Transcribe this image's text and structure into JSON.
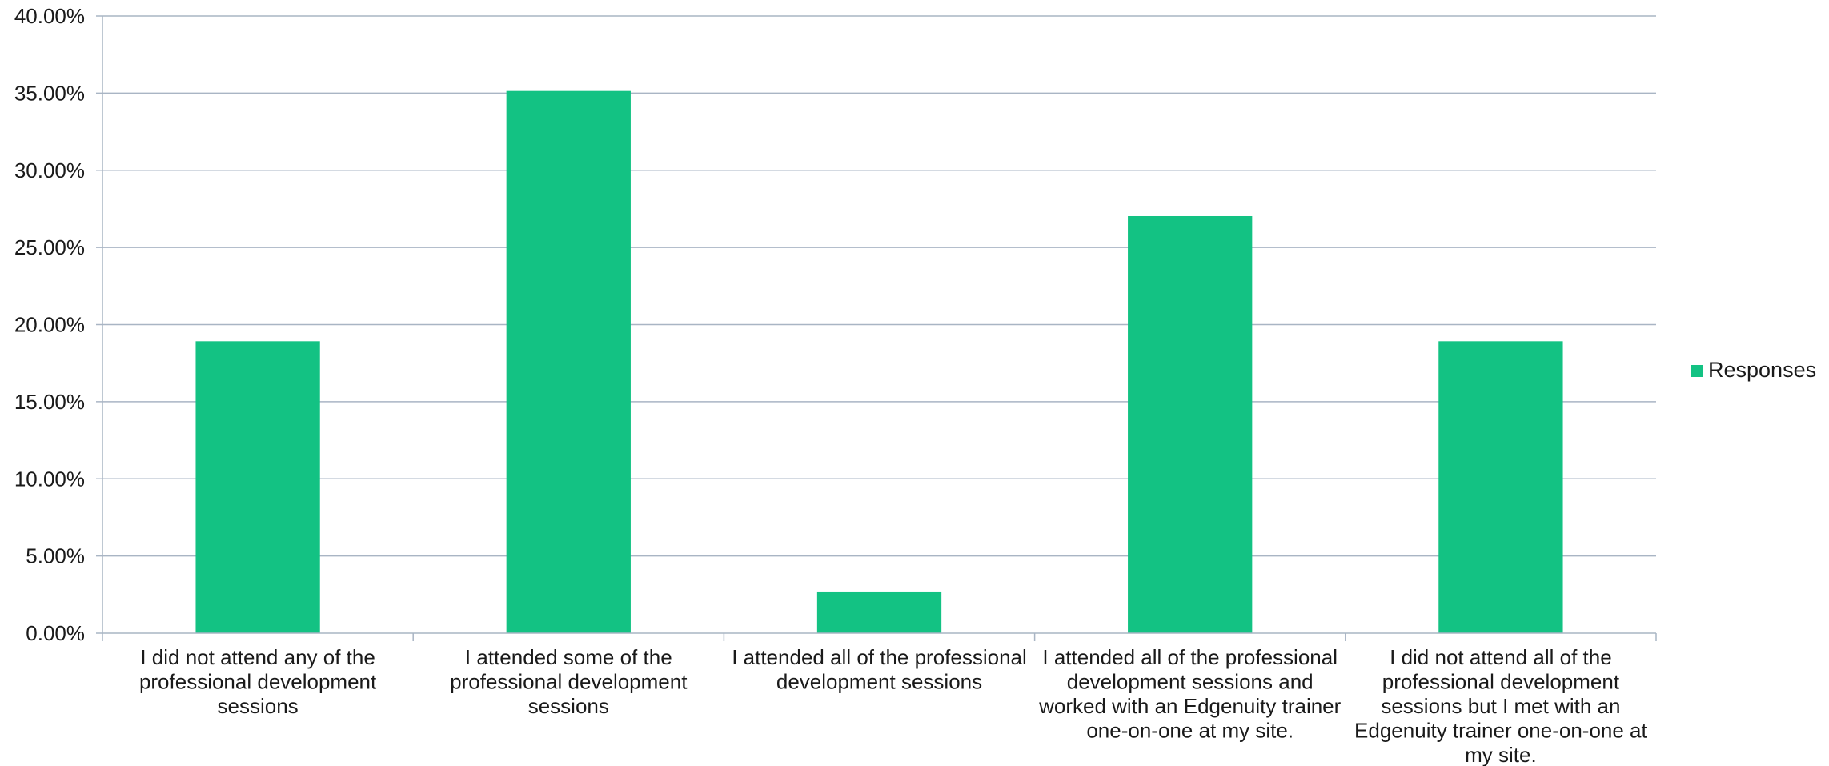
{
  "chart_data": {
    "type": "bar",
    "title": "",
    "xlabel": "",
    "ylabel": "",
    "categories": [
      "I did not attend any of the professional development sessions",
      "I attended some of the professional development sessions",
      "I attended all of the professional development sessions",
      "I attended all of the professional development sessions and worked with an Edgenuity trainer one-on-one at my site.",
      "I did not attend all of the professional development sessions but I met with an Edgenuity trainer one-on-one at my site."
    ],
    "category_lines": [
      [
        "I did not attend any of the",
        "professional development",
        "sessions"
      ],
      [
        "I attended some of the",
        "professional development",
        "sessions"
      ],
      [
        "I attended all of the professional",
        "development sessions"
      ],
      [
        "I attended all of the professional",
        "development sessions and",
        "worked with an Edgenuity trainer",
        "one-on-one at my site."
      ],
      [
        "I did not attend all of the",
        "professional development",
        "sessions but I met with an",
        "Edgenuity trainer one-on-one at",
        "my site."
      ]
    ],
    "series": [
      {
        "name": "Responses",
        "color": "#13C283",
        "values": [
          18.92,
          35.14,
          2.7,
          27.03,
          18.92
        ]
      }
    ],
    "ylim": [
      0,
      40
    ],
    "y_ticks": [
      0,
      5,
      10,
      15,
      20,
      25,
      30,
      35,
      40
    ],
    "y_tick_labels": [
      "0.00%",
      "5.00%",
      "10.00%",
      "15.00%",
      "20.00%",
      "25.00%",
      "30.00%",
      "35.00%",
      "40.00%"
    ],
    "grid": true,
    "grid_color": "#A9B5C4",
    "axis_color": "#A9B5C4",
    "legend_position": "right"
  }
}
